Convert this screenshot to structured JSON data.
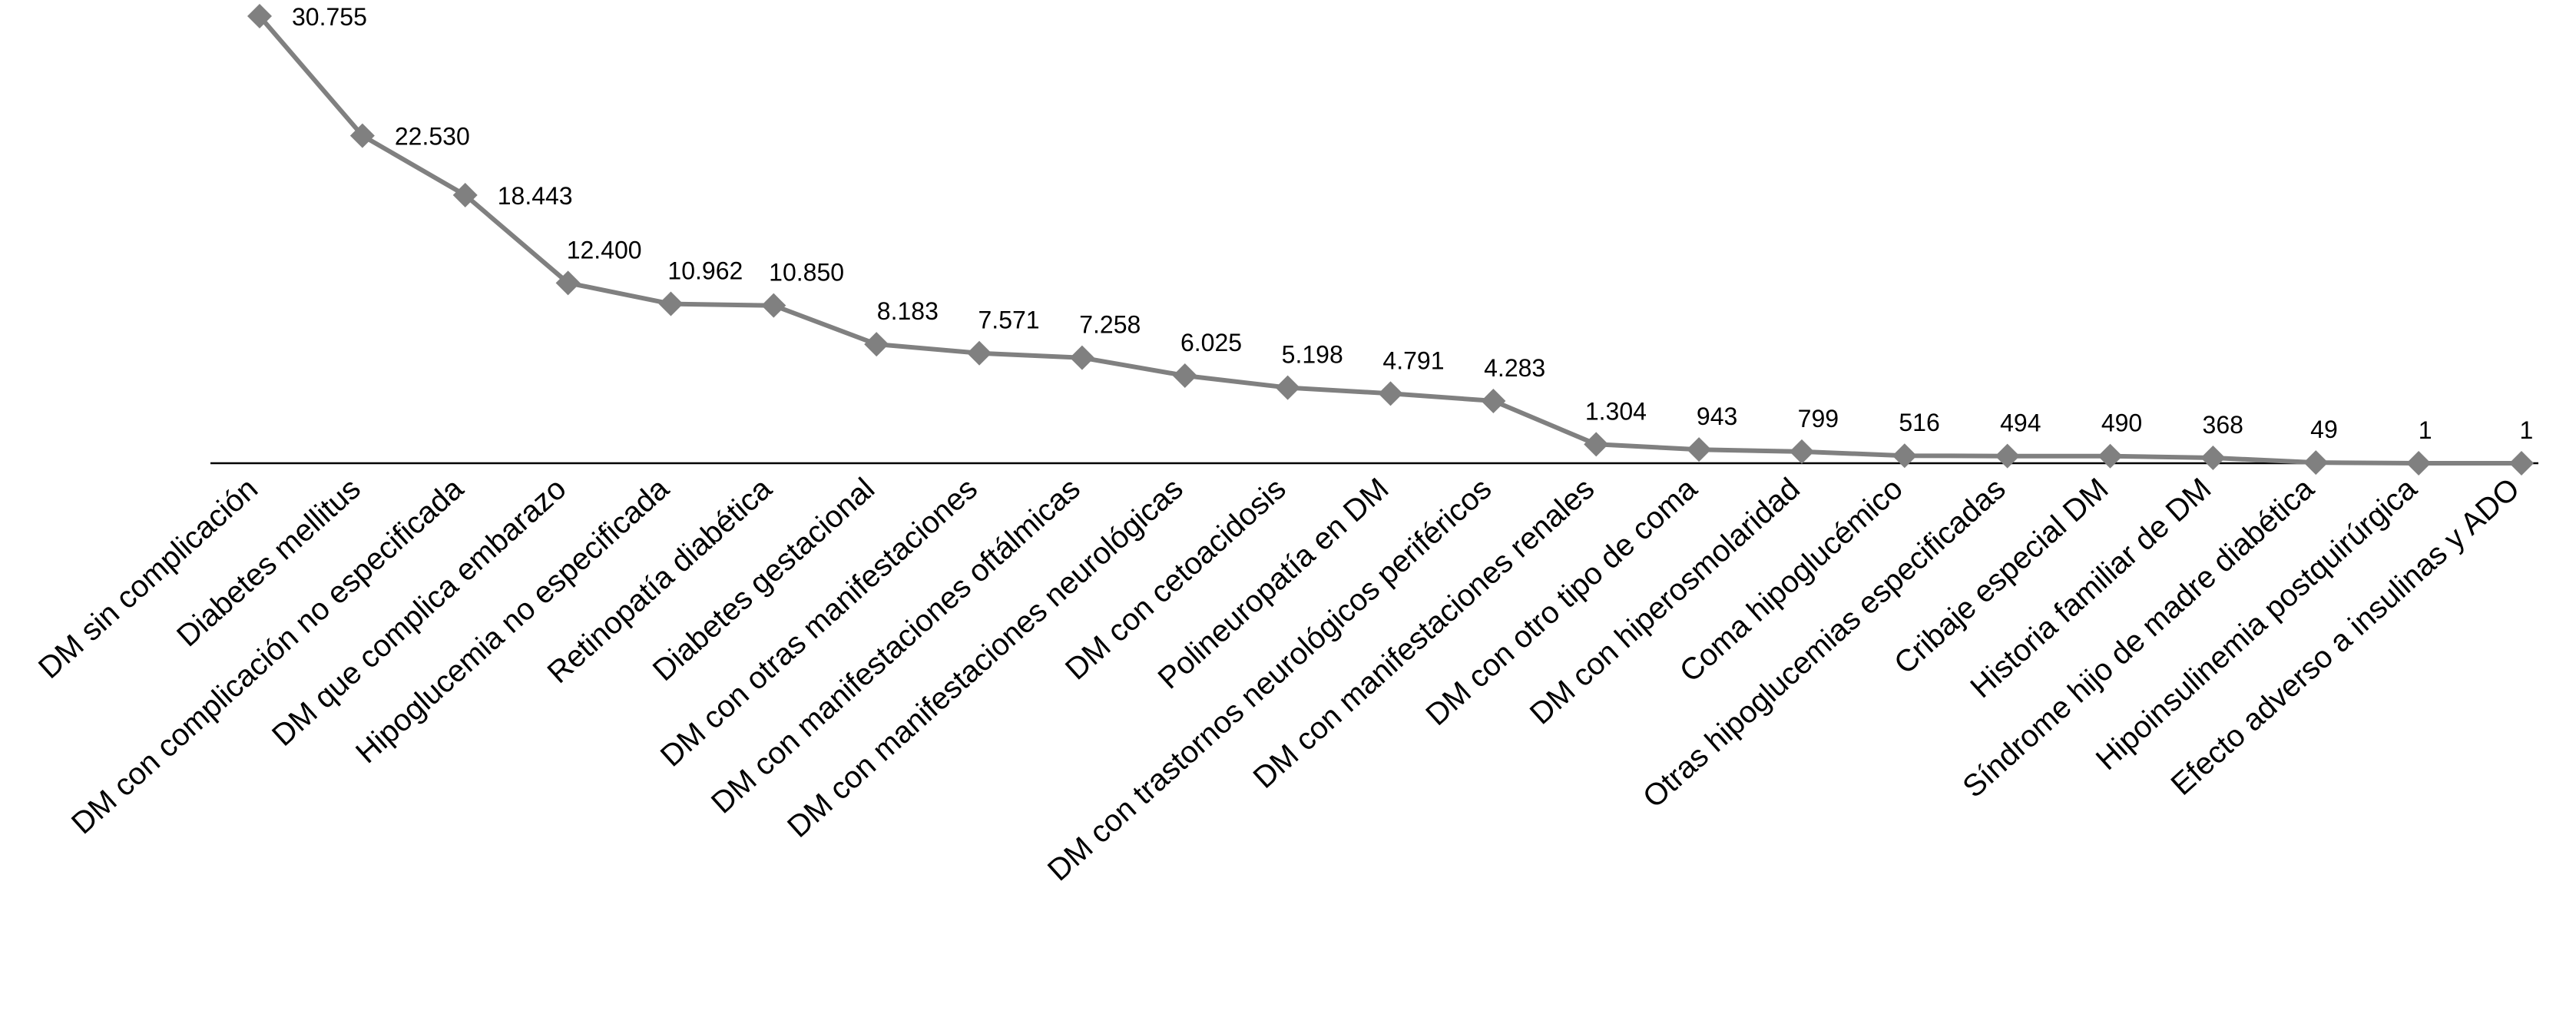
{
  "chart_data": {
    "type": "line",
    "categories": [
      "DM sin complicación",
      "Diabetes mellitus",
      "DM con complicación no especificada",
      "DM que complica embarazo",
      "Hipoglucemia no especificada",
      "Retinopatía diabética",
      "Diabetes gestacional",
      "DM con otras manifestaciones",
      "DM con manifestaciones oftálmicas",
      "DM con manifestaciones neurológicas",
      "DM con cetoacidosis",
      "Polineuropatía en DM",
      "DM con trastornos neurológicos periféricos",
      "DM con manifestaciones renales",
      "DM con otro tipo de coma",
      "DM con hiperosmolaridad",
      "Coma hipoglucémico",
      "Otras hipoglucemias especificadas",
      "Cribaje especial DM",
      "Historia familiar de DM",
      "Síndrome hijo de madre diabética",
      "Hipoinsulinemia postquirúrgica",
      "Efecto adverso a insulinas y ADO"
    ],
    "values": [
      30755,
      22530,
      18443,
      12400,
      10962,
      10850,
      8183,
      7571,
      7258,
      6025,
      5198,
      4791,
      4283,
      1304,
      943,
      799,
      516,
      494,
      490,
      368,
      49,
      1,
      1
    ],
    "value_labels": [
      "30.755",
      "22.530",
      "18.443",
      "12.400",
      "10.962",
      "10.850",
      "8.183",
      "7.571",
      "7.258",
      "6.025",
      "5.198",
      "4.791",
      "4.283",
      "1.304",
      "943",
      "799",
      "516",
      "494",
      "490",
      "368",
      "49",
      "1",
      "1"
    ],
    "color": "#808080"
  }
}
